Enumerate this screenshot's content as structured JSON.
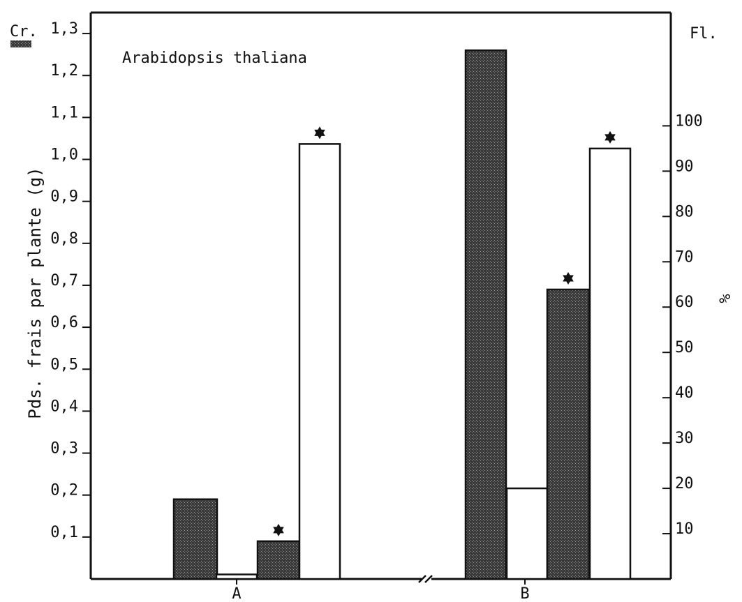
{
  "chart_data": {
    "type": "bar",
    "annotation": "Arabidopsis thaliana",
    "ylabel": "Pds. frais par plante (g)",
    "ylabel_right": "%",
    "left_axis_label": "Cr.",
    "right_axis_label": "Fl.",
    "ylim": [
      0,
      1.35
    ],
    "ylim_right": [
      0,
      125
    ],
    "yticks": [
      "0,1",
      "0,2",
      "0,3",
      "0,4",
      "0,5",
      "0,6",
      "0,7",
      "0,8",
      "0,9",
      "1,0",
      "1,1",
      "1,2",
      "1,3"
    ],
    "yticks_right": [
      "10",
      "20",
      "30",
      "40",
      "50",
      "60",
      "70",
      "80",
      "90",
      "100"
    ],
    "categories": [
      "A",
      "B"
    ],
    "axis_break": true,
    "bars": [
      {
        "group": "A",
        "axis": "left",
        "pattern": "stipple",
        "value": 0.19,
        "star": false
      },
      {
        "group": "A",
        "axis": "right",
        "pattern": "open",
        "value": 1,
        "star": false
      },
      {
        "group": "A",
        "axis": "left",
        "pattern": "stipple",
        "value": 0.09,
        "star": true
      },
      {
        "group": "A",
        "axis": "right",
        "pattern": "open",
        "value": 96,
        "star": true
      },
      {
        "group": "B",
        "axis": "left",
        "pattern": "stipple",
        "value": 1.26,
        "star": false
      },
      {
        "group": "B",
        "axis": "right",
        "pattern": "open",
        "value": 20,
        "star": false
      },
      {
        "group": "B",
        "axis": "left",
        "pattern": "stipple",
        "value": 0.69,
        "star": true
      },
      {
        "group": "B",
        "axis": "right",
        "pattern": "open",
        "value": 95,
        "star": true
      }
    ],
    "colors": {
      "stipple": "#2e2e2e",
      "open": "#ffffff",
      "ink": "#111111"
    }
  }
}
